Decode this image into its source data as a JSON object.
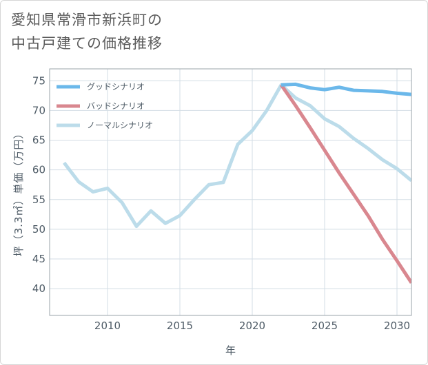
{
  "title": "愛知県常滑市新浜町の\n中古戸建ての価格推移",
  "chart_data": {
    "type": "line",
    "title": "愛知県常滑市新浜町の中古戸建ての価格推移",
    "xlabel": "年",
    "ylabel": "坪（3.3㎡）単価（万円）",
    "xlim": [
      2006,
      2031
    ],
    "ylim": [
      35.5,
      77
    ],
    "x_ticks": [
      2010,
      2015,
      2020,
      2025,
      2030
    ],
    "y_ticks": [
      40,
      45,
      50,
      55,
      60,
      65,
      70,
      75
    ],
    "legend_position": "top-left",
    "series": [
      {
        "name": "グッドシナリオ",
        "color": "#6bb8ea",
        "x": [
          2022,
          2023,
          2024,
          2025,
          2026,
          2027,
          2028,
          2029,
          2030,
          2031
        ],
        "values": [
          74.3,
          74.4,
          73.8,
          73.5,
          73.9,
          73.4,
          73.3,
          73.2,
          72.9,
          72.7
        ]
      },
      {
        "name": "バッドシナリオ",
        "color": "#d9878f",
        "x": [
          2022,
          2023,
          2024,
          2025,
          2026,
          2027,
          2028,
          2029,
          2030,
          2031
        ],
        "values": [
          74.3,
          70.8,
          67.1,
          63.3,
          59.5,
          55.9,
          52.3,
          48.3,
          44.7,
          41.0
        ]
      },
      {
        "name": "ノーマルシナリオ",
        "color": "#bcdcea",
        "x": [
          2007,
          2008,
          2009,
          2010,
          2011,
          2012,
          2013,
          2014,
          2015,
          2016,
          2017,
          2018,
          2019,
          2020,
          2021,
          2022,
          2023,
          2024,
          2025,
          2026,
          2027,
          2028,
          2029,
          2030,
          2031
        ],
        "values": [
          61.2,
          58.0,
          56.3,
          56.9,
          54.5,
          50.5,
          53.1,
          51.0,
          52.3,
          55.0,
          57.5,
          57.9,
          64.3,
          66.6,
          70.0,
          74.3,
          72.1,
          70.8,
          68.6,
          67.3,
          65.3,
          63.6,
          61.7,
          60.2,
          58.2
        ]
      }
    ]
  }
}
